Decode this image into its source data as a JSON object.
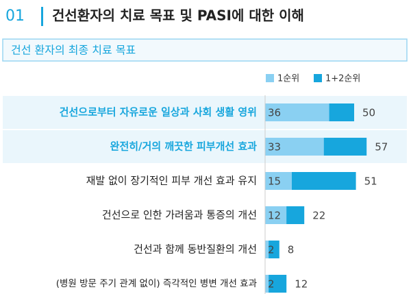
{
  "chart_data": {
    "type": "overlap_bar",
    "section_number": "01",
    "title": "건선환자의 치료 목표 및 PASI에 대한 이해",
    "subtitle": "건선 환자의 최종 치료 목표",
    "categories": [
      "건선으로부터 자유로운 일상과 사회 생활 영위",
      "완전히/거의 깨끗한 피부개선 효과",
      "재발 없이 장기적인 피부 개선 효과 유지",
      "건선으로 인한 가려움과 통증의 개선",
      "건선과 함께 동반질환의 개선",
      "(병원 방문 주기 관계 없이) 즉각적인 병변 개선 효과"
    ],
    "highlight": [
      true,
      true,
      false,
      false,
      false,
      false
    ],
    "series": [
      {
        "name": "1+2순위",
        "color": "#17a6dd",
        "values": [
          50,
          57,
          51,
          22,
          8,
          12
        ]
      },
      {
        "name": "1순위",
        "color": "#8ad0f2",
        "values": [
          36,
          33,
          15,
          12,
          2,
          2
        ]
      }
    ],
    "xlim": [
      0,
      80
    ]
  }
}
